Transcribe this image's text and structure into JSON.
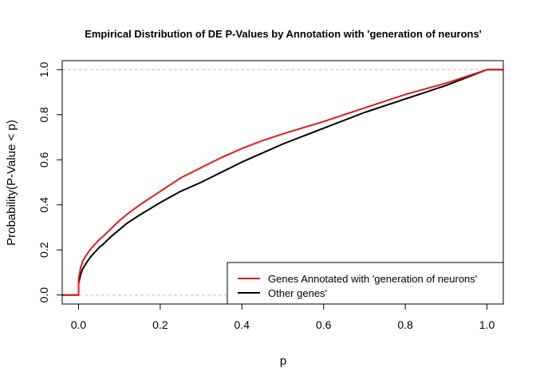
{
  "chart_data": {
    "type": "line",
    "title": "Empirical Distribution of DE P-Values by Annotation with 'generation of neurons'",
    "xlabel": "p",
    "ylabel": "Probability(P-Value < p)",
    "xlim": [
      -0.04,
      1.04
    ],
    "ylim": [
      -0.04,
      1.04
    ],
    "x_ticks": [
      "0.0",
      "0.2",
      "0.4",
      "0.6",
      "0.8",
      "1.0"
    ],
    "y_ticks": [
      "0.0",
      "0.2",
      "0.4",
      "0.6",
      "0.8",
      "1.0"
    ],
    "reference_lines": [
      0,
      1
    ],
    "grid": false,
    "legend_position": "bottom-right",
    "colors": {
      "annotated": "#e41a1c",
      "other": "#000000",
      "reference": "#bfbfbf"
    },
    "series": [
      {
        "name": "Genes Annotated with 'generation of neurons'",
        "color": "#e41a1c",
        "x": [
          -0.04,
          0.0,
          0.0,
          0.005,
          0.01,
          0.02,
          0.03,
          0.04,
          0.05,
          0.06,
          0.08,
          0.1,
          0.12,
          0.15,
          0.2,
          0.25,
          0.3,
          0.35,
          0.4,
          0.45,
          0.5,
          0.6,
          0.7,
          0.8,
          0.9,
          1.0,
          1.04
        ],
        "y": [
          0.0,
          0.0,
          0.07,
          0.12,
          0.15,
          0.18,
          0.205,
          0.225,
          0.245,
          0.26,
          0.295,
          0.33,
          0.36,
          0.4,
          0.46,
          0.52,
          0.565,
          0.61,
          0.65,
          0.685,
          0.715,
          0.77,
          0.83,
          0.89,
          0.94,
          1.0,
          1.0
        ]
      },
      {
        "name": "Other genes'",
        "color": "#000000",
        "x": [
          -0.04,
          0.0,
          0.0,
          0.005,
          0.01,
          0.02,
          0.03,
          0.04,
          0.05,
          0.06,
          0.08,
          0.1,
          0.12,
          0.15,
          0.2,
          0.25,
          0.3,
          0.35,
          0.4,
          0.45,
          0.5,
          0.6,
          0.7,
          0.8,
          0.9,
          1.0,
          1.04
        ],
        "y": [
          0.0,
          0.0,
          0.05,
          0.09,
          0.115,
          0.145,
          0.17,
          0.19,
          0.21,
          0.225,
          0.26,
          0.29,
          0.32,
          0.355,
          0.41,
          0.46,
          0.5,
          0.545,
          0.59,
          0.63,
          0.67,
          0.74,
          0.81,
          0.87,
          0.93,
          1.0,
          1.0
        ]
      }
    ]
  }
}
